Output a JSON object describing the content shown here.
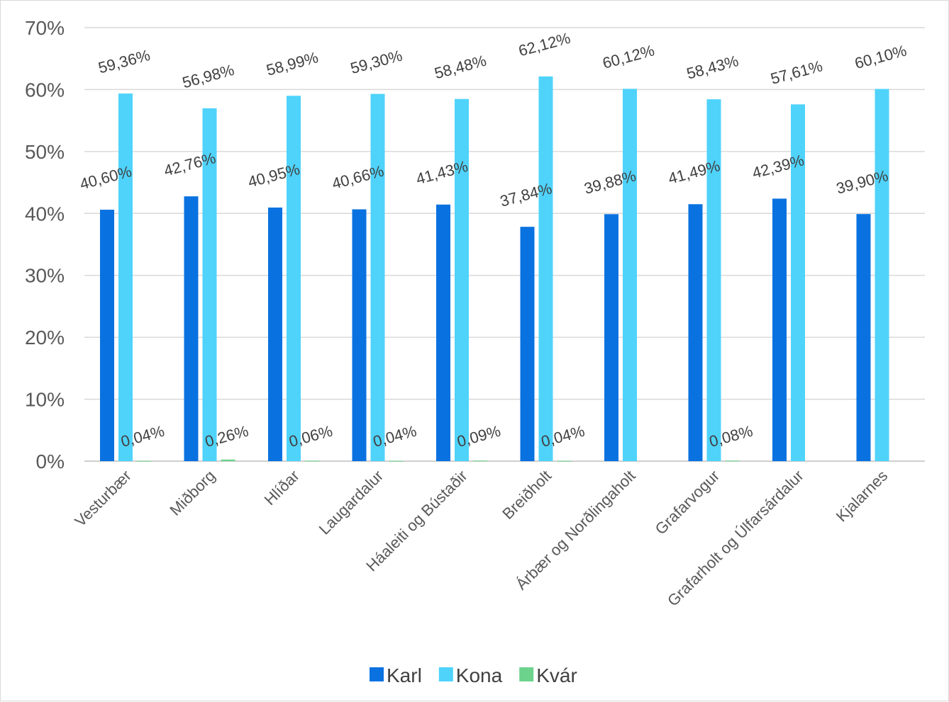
{
  "chart_data": {
    "type": "bar",
    "categories": [
      "Vesturbær",
      "Miðborg",
      "Hlíðar",
      "Laugardalur",
      "Háaleiti og Bústaðir",
      "Breiðholt",
      "Árbær og Norðlingaholt",
      "Grafarvogur",
      "Grafarholt og Úlfarsárdalur",
      "Kjalarnes"
    ],
    "series": [
      {
        "name": "Karl",
        "color": "#0a72e0",
        "values": [
          40.6,
          42.76,
          40.95,
          40.66,
          41.43,
          37.84,
          39.88,
          41.49,
          42.39,
          39.9
        ],
        "labels": [
          "40,60%",
          "42,76%",
          "40,95%",
          "40,66%",
          "41,43%",
          "37,84%",
          "39,88%",
          "41,49%",
          "42,39%",
          "39,90%"
        ]
      },
      {
        "name": "Kona",
        "color": "#4fd3fb",
        "values": [
          59.36,
          56.98,
          58.99,
          59.3,
          58.48,
          62.12,
          60.12,
          58.43,
          57.61,
          60.1
        ],
        "labels": [
          "59,36%",
          "56,98%",
          "58,99%",
          "59,30%",
          "58,48%",
          "62,12%",
          "60,12%",
          "58,43%",
          "57,61%",
          "60,10%"
        ]
      },
      {
        "name": "Kvár",
        "color": "#6cd38c",
        "values": [
          0.04,
          0.26,
          0.06,
          0.04,
          0.09,
          0.04,
          null,
          0.08,
          null,
          null
        ],
        "labels": [
          "0,04%",
          "0,26%",
          "0,06%",
          "0,04%",
          "0,09%",
          "0,04%",
          "",
          "0,08%",
          "",
          ""
        ]
      }
    ],
    "yticks": [
      "0%",
      "10%",
      "20%",
      "30%",
      "40%",
      "50%",
      "60%",
      "70%"
    ],
    "ylim": [
      0,
      70
    ],
    "grid": true,
    "legend_position": "bottom"
  }
}
